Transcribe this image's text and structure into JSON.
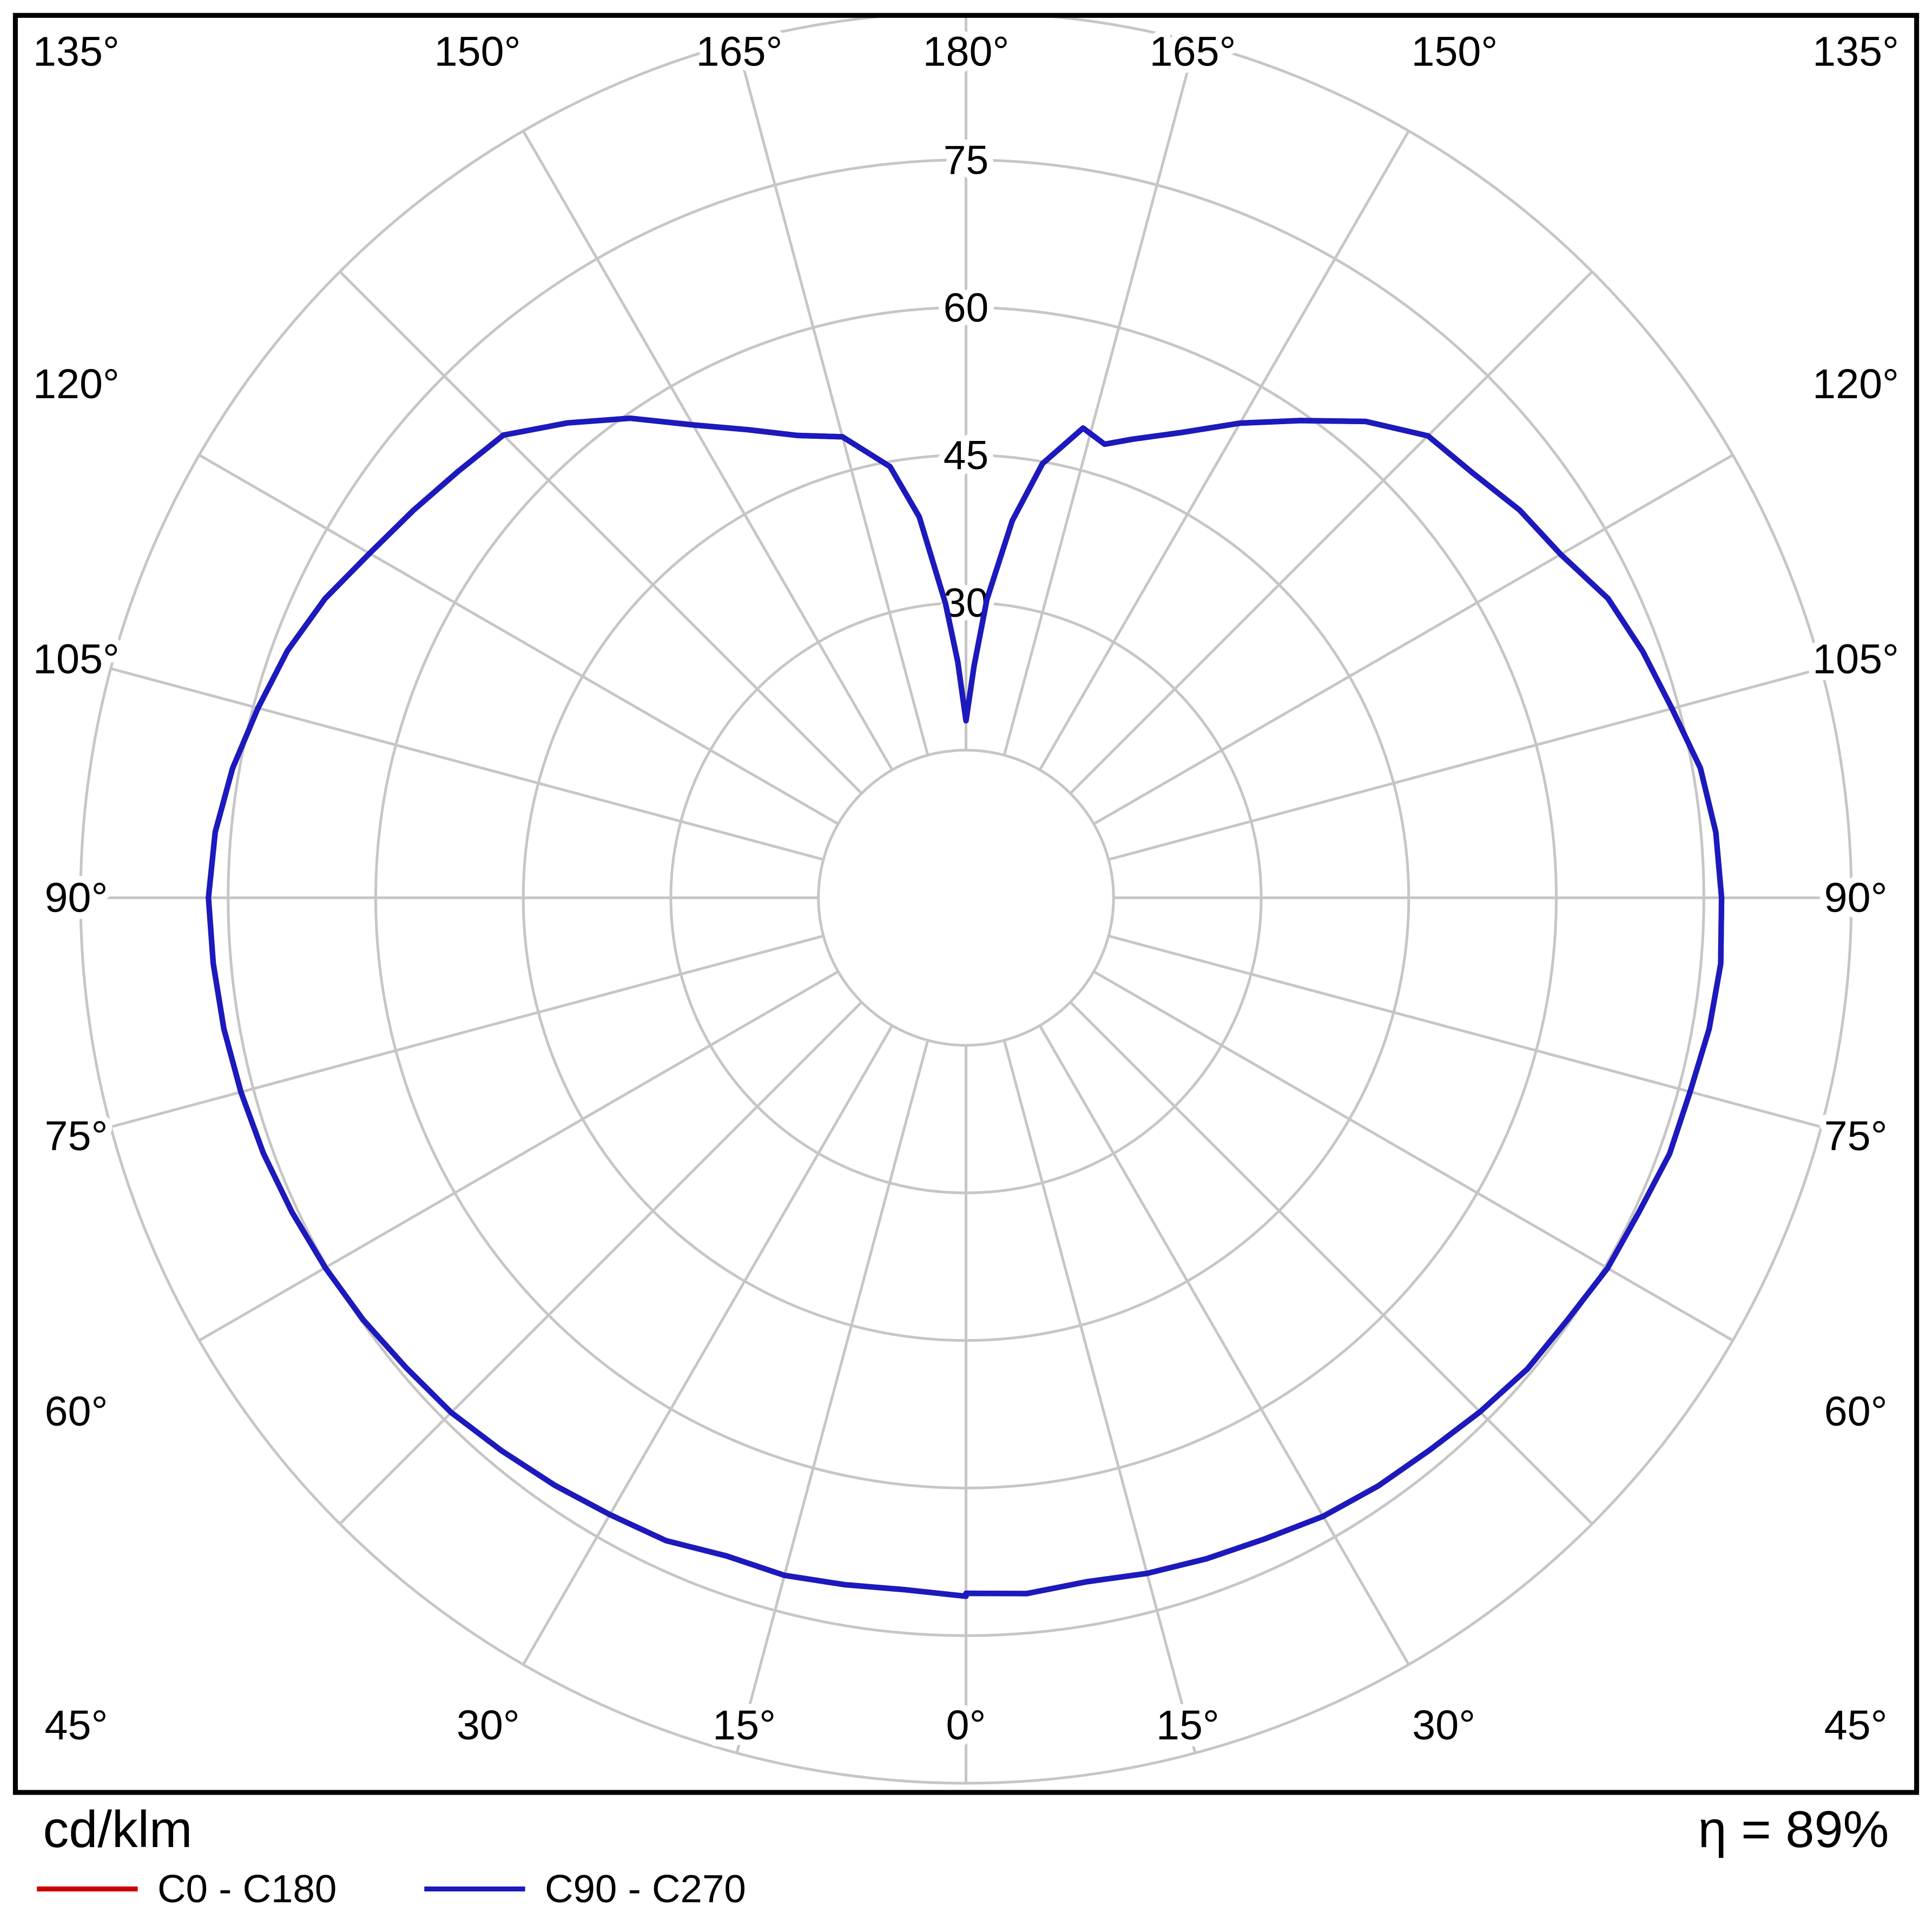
{
  "footer": {
    "unit_label": "cd/klm",
    "efficiency_label": "η = 89%"
  },
  "chart_data": {
    "type": "line",
    "subtype": "polar-photometric-distribution",
    "title": "",
    "units": "cd/klm",
    "efficiency_percent": 89,
    "grid_color": "#c6c6c6",
    "frame_color": "#000000",
    "r_rings": [
      15,
      30,
      45,
      60,
      75,
      90
    ],
    "r_ticks": [
      30,
      45,
      60,
      75
    ],
    "r_max": 90,
    "angle_step_deg": 15,
    "angle_reference": "0° at bottom (nadir), 180° at top (zenith), mirrored left/right",
    "angle_ticks": [
      {
        "deg": 0,
        "label": "0°"
      },
      {
        "deg": 15,
        "label": "15°"
      },
      {
        "deg": 30,
        "label": "30°"
      },
      {
        "deg": 45,
        "label": "45°"
      },
      {
        "deg": 60,
        "label": "60°"
      },
      {
        "deg": 75,
        "label": "75°"
      },
      {
        "deg": 90,
        "label": "90°"
      },
      {
        "deg": 105,
        "label": "105°"
      },
      {
        "deg": 120,
        "label": "120°"
      },
      {
        "deg": 135,
        "label": "135°"
      },
      {
        "deg": 150,
        "label": "150°"
      },
      {
        "deg": 165,
        "label": "165°"
      },
      {
        "deg": 180,
        "label": "180°"
      }
    ],
    "series": [
      {
        "id": "c0-c180",
        "name": "C0 - C180",
        "color": "#cc0000",
        "note": "coincides with C90 - C270 curve (hidden underneath)",
        "left": [
          [
            0,
            71.0
          ],
          [
            5,
            70.6
          ],
          [
            10,
            70.9
          ],
          [
            15,
            71.3
          ],
          [
            20,
            71.2
          ],
          [
            25,
            72.1
          ],
          [
            30,
            72.4
          ],
          [
            35,
            72.9
          ],
          [
            40,
            73.4
          ],
          [
            45,
            74.0
          ],
          [
            50,
            74.3
          ],
          [
            55,
            74.8
          ],
          [
            60,
            75.2
          ],
          [
            65,
            75.6
          ],
          [
            70,
            76.0
          ],
          [
            75,
            76.3
          ],
          [
            80,
            76.6
          ],
          [
            85,
            76.8
          ],
          [
            90,
            77.0
          ],
          [
            95,
            76.6
          ],
          [
            100,
            75.7
          ],
          [
            105,
            74.5
          ],
          [
            110,
            73.4
          ],
          [
            115,
            71.9
          ],
          [
            120,
            70.0
          ],
          [
            125,
            68.6
          ],
          [
            130,
            67.4
          ],
          [
            135,
            66.5
          ],
          [
            140,
            63.0
          ],
          [
            145,
            59.5
          ],
          [
            150,
            55.5
          ],
          [
            155,
            52.5
          ],
          [
            160,
            50.0
          ],
          [
            165,
            48.5
          ],
          [
            170,
            44.5
          ],
          [
            173,
            39.0
          ],
          [
            176,
            30.0
          ],
          [
            178,
            24.0
          ],
          [
            180,
            18.0
          ]
        ],
        "right": [
          [
            0,
            70.7
          ],
          [
            5,
            71.0
          ],
          [
            10,
            70.6
          ],
          [
            15,
            71.1
          ],
          [
            20,
            71.5
          ],
          [
            25,
            71.9
          ],
          [
            30,
            72.6
          ],
          [
            35,
            73.0
          ],
          [
            40,
            73.3
          ],
          [
            45,
            73.9
          ],
          [
            50,
            74.5
          ],
          [
            55,
            74.7
          ],
          [
            60,
            75.3
          ],
          [
            65,
            75.5
          ],
          [
            70,
            76.1
          ],
          [
            75,
            76.2
          ],
          [
            80,
            76.7
          ],
          [
            85,
            77.0
          ],
          [
            90,
            76.8
          ],
          [
            95,
            76.5
          ],
          [
            100,
            75.8
          ],
          [
            105,
            74.3
          ],
          [
            110,
            73.2
          ],
          [
            115,
            72.0
          ],
          [
            120,
            69.8
          ],
          [
            125,
            68.7
          ],
          [
            130,
            67.2
          ],
          [
            135,
            66.4
          ],
          [
            140,
            63.2
          ],
          [
            145,
            59.2
          ],
          [
            150,
            55.7
          ],
          [
            155,
            52.2
          ],
          [
            160,
            49.6
          ],
          [
            163,
            48.2
          ],
          [
            166,
            49.2
          ],
          [
            170,
            44.8
          ],
          [
            173,
            38.6
          ],
          [
            176,
            30.4
          ],
          [
            178,
            23.6
          ],
          [
            180,
            18.0
          ]
        ]
      },
      {
        "id": "c90-c270",
        "name": "C90 - C270",
        "color": "#1a1abe",
        "left": [
          [
            0,
            71.0
          ],
          [
            5,
            70.6
          ],
          [
            10,
            70.9
          ],
          [
            15,
            71.3
          ],
          [
            20,
            71.2
          ],
          [
            25,
            72.1
          ],
          [
            30,
            72.4
          ],
          [
            35,
            72.9
          ],
          [
            40,
            73.4
          ],
          [
            45,
            74.0
          ],
          [
            50,
            74.3
          ],
          [
            55,
            74.8
          ],
          [
            60,
            75.2
          ],
          [
            65,
            75.6
          ],
          [
            70,
            76.0
          ],
          [
            75,
            76.3
          ],
          [
            80,
            76.6
          ],
          [
            85,
            76.8
          ],
          [
            90,
            77.0
          ],
          [
            95,
            76.6
          ],
          [
            100,
            75.7
          ],
          [
            105,
            74.5
          ],
          [
            110,
            73.4
          ],
          [
            115,
            71.9
          ],
          [
            120,
            70.0
          ],
          [
            125,
            68.6
          ],
          [
            130,
            67.4
          ],
          [
            135,
            66.5
          ],
          [
            140,
            63.0
          ],
          [
            145,
            59.5
          ],
          [
            150,
            55.5
          ],
          [
            155,
            52.5
          ],
          [
            160,
            50.0
          ],
          [
            165,
            48.5
          ],
          [
            170,
            44.5
          ],
          [
            173,
            39.0
          ],
          [
            176,
            30.0
          ],
          [
            178,
            24.0
          ],
          [
            180,
            18.0
          ]
        ],
        "right": [
          [
            0,
            70.7
          ],
          [
            5,
            71.0
          ],
          [
            10,
            70.6
          ],
          [
            15,
            71.1
          ],
          [
            20,
            71.5
          ],
          [
            25,
            71.9
          ],
          [
            30,
            72.6
          ],
          [
            35,
            73.0
          ],
          [
            40,
            73.3
          ],
          [
            45,
            73.9
          ],
          [
            50,
            74.5
          ],
          [
            55,
            74.7
          ],
          [
            60,
            75.3
          ],
          [
            65,
            75.5
          ],
          [
            70,
            76.1
          ],
          [
            75,
            76.2
          ],
          [
            80,
            76.7
          ],
          [
            85,
            77.0
          ],
          [
            90,
            76.8
          ],
          [
            95,
            76.5
          ],
          [
            100,
            75.8
          ],
          [
            105,
            74.3
          ],
          [
            110,
            73.2
          ],
          [
            115,
            72.0
          ],
          [
            120,
            69.8
          ],
          [
            125,
            68.7
          ],
          [
            130,
            67.2
          ],
          [
            135,
            66.4
          ],
          [
            140,
            63.2
          ],
          [
            145,
            59.2
          ],
          [
            150,
            55.7
          ],
          [
            155,
            52.2
          ],
          [
            160,
            49.6
          ],
          [
            163,
            48.2
          ],
          [
            166,
            49.2
          ],
          [
            170,
            44.8
          ],
          [
            173,
            38.6
          ],
          [
            176,
            30.4
          ],
          [
            178,
            23.6
          ],
          [
            180,
            18.0
          ]
        ]
      }
    ]
  }
}
